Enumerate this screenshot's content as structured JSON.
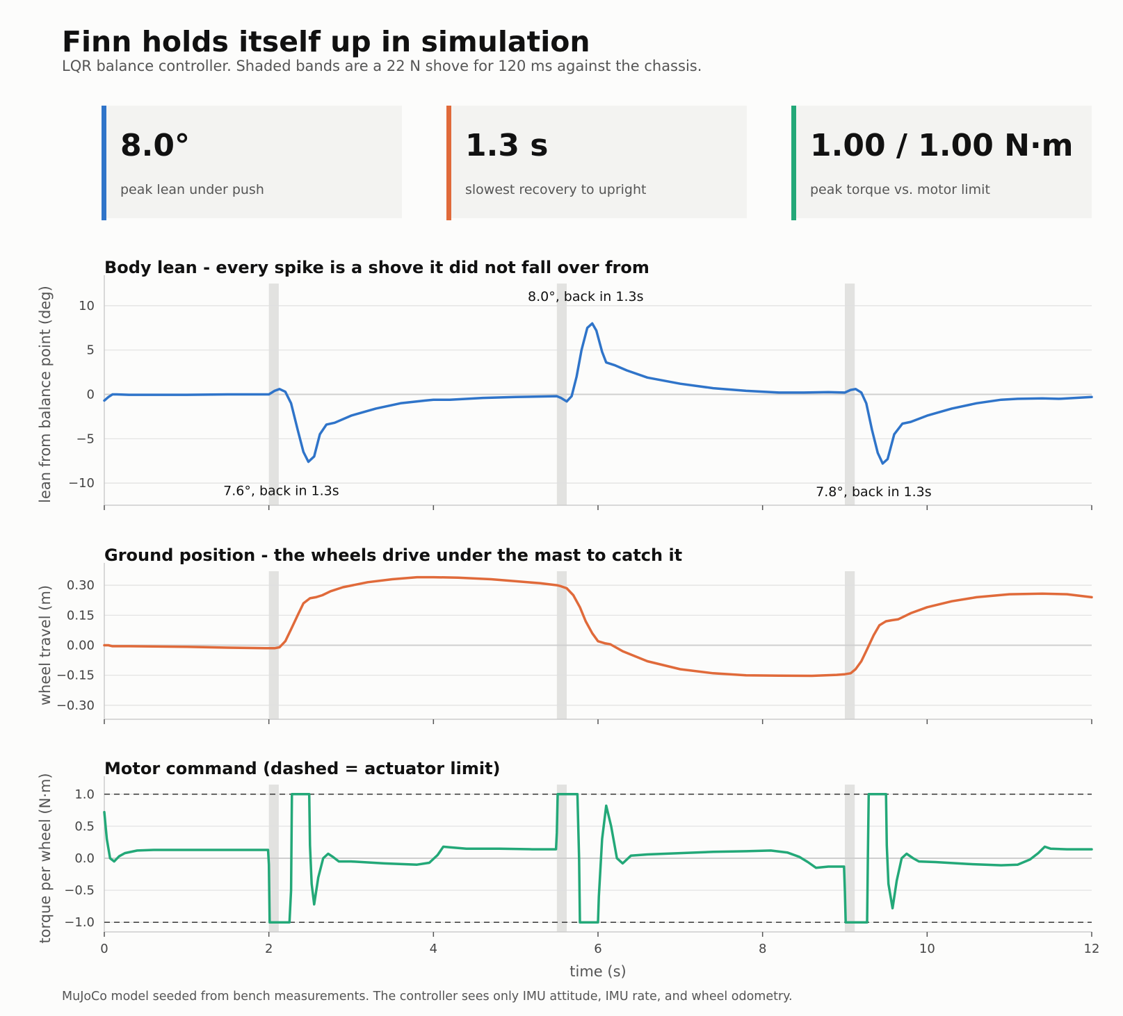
{
  "header": {
    "title": "Finn holds itself up in simulation",
    "subtitle": "LQR balance controller. Shaded bands are a 22 N shove for 120 ms against the chassis."
  },
  "kpis": [
    {
      "value": "8.0°",
      "label": "peak lean under push",
      "color": "#2f74c9"
    },
    {
      "value": "1.3 s",
      "label": "slowest recovery to upright",
      "color": "#e06a3a"
    },
    {
      "value": "1.00 / 1.00 N·m",
      "label": "peak torque vs. motor limit",
      "color": "#23a878"
    }
  ],
  "footer": "MuJoCo model seeded from bench measurements. The controller sees only IMU attitude, IMU rate, and wheel odometry.",
  "chart_data": [
    {
      "type": "line",
      "title": "Body lean - every spike is a shove it did not fall over from",
      "xlabel": "",
      "ylabel": "lean from balance point (deg)",
      "xlim": [
        0,
        12
      ],
      "ylim": [
        -12.5,
        12.5
      ],
      "yticks": [
        -10,
        -5,
        0,
        5,
        10
      ],
      "ytick_labels": [
        "−10",
        "−5",
        "0",
        "5",
        "10"
      ],
      "xticks": [
        0,
        2,
        4,
        6,
        8,
        10,
        12
      ],
      "xtick_labels": [],
      "color": "#2f74c9",
      "push_bands": [
        [
          2.0,
          2.12
        ],
        [
          5.5,
          5.62
        ],
        [
          9.0,
          9.12
        ]
      ],
      "series": [
        {
          "x": [
            0,
            0.05,
            0.1,
            0.15,
            0.3,
            1.0,
            1.5,
            2.0,
            2.07,
            2.13,
            2.2,
            2.27,
            2.35,
            2.42,
            2.48,
            2.55,
            2.62,
            2.7,
            2.8,
            3.0,
            3.3,
            3.6,
            3.9,
            4.0,
            4.2,
            4.6,
            5.0,
            5.5,
            5.55,
            5.62,
            5.68,
            5.74,
            5.8,
            5.87,
            5.93,
            5.98,
            6.05,
            6.1,
            6.2,
            6.35,
            6.6,
            7.0,
            7.4,
            7.8,
            8.2,
            8.5,
            8.8,
            9.0,
            9.07,
            9.13,
            9.2,
            9.26,
            9.33,
            9.4,
            9.46,
            9.52,
            9.6,
            9.7,
            9.8,
            10.0,
            10.3,
            10.6,
            10.9,
            11.1,
            11.4,
            11.6,
            12.0
          ],
          "y": [
            -0.7,
            -0.3,
            0,
            0,
            -0.05,
            -0.05,
            0,
            0,
            0.4,
            0.6,
            0.3,
            -1.0,
            -4.0,
            -6.5,
            -7.6,
            -7.0,
            -4.5,
            -3.4,
            -3.2,
            -2.4,
            -1.6,
            -1.0,
            -0.7,
            -0.6,
            -0.6,
            -0.4,
            -0.3,
            -0.2,
            -0.4,
            -0.8,
            -0.2,
            2.0,
            5.0,
            7.5,
            8.0,
            7.2,
            4.8,
            3.6,
            3.3,
            2.7,
            1.9,
            1.2,
            0.7,
            0.4,
            0.2,
            0.2,
            0.25,
            0.2,
            0.5,
            0.6,
            0.2,
            -1.0,
            -4.0,
            -6.6,
            -7.8,
            -7.3,
            -4.5,
            -3.3,
            -3.1,
            -2.4,
            -1.6,
            -1.0,
            -0.6,
            -0.5,
            -0.45,
            -0.5,
            -0.3
          ]
        }
      ],
      "annotations": [
        {
          "x": 2.15,
          "y": -10.9,
          "text": "7.6°, back in 1.3s"
        },
        {
          "x": 5.85,
          "y": 11.0,
          "text": "8.0°, back in 1.3s"
        },
        {
          "x": 9.35,
          "y": -11.0,
          "text": "7.8°, back in 1.3s"
        }
      ]
    },
    {
      "type": "line",
      "title": "Ground position - the wheels drive under the mast to catch it",
      "xlabel": "",
      "ylabel": "wheel travel (m)",
      "xlim": [
        0,
        12
      ],
      "ylim": [
        -0.37,
        0.37
      ],
      "yticks": [
        -0.3,
        -0.15,
        0.0,
        0.15,
        0.3
      ],
      "ytick_labels": [
        "−0.30",
        "−0.15",
        "0.00",
        "0.15",
        "0.30"
      ],
      "xticks": [
        0,
        2,
        4,
        6,
        8,
        10,
        12
      ],
      "xtick_labels": [],
      "color": "#e06a3a",
      "push_bands": [
        [
          2.0,
          2.12
        ],
        [
          5.5,
          5.62
        ],
        [
          9.0,
          9.12
        ]
      ],
      "series": [
        {
          "x": [
            0,
            0.05,
            0.1,
            0.3,
            1.0,
            1.5,
            2.0,
            2.07,
            2.13,
            2.2,
            2.27,
            2.35,
            2.42,
            2.5,
            2.57,
            2.65,
            2.75,
            2.9,
            3.2,
            3.5,
            3.8,
            4.0,
            4.3,
            4.7,
            5.0,
            5.3,
            5.5,
            5.55,
            5.62,
            5.7,
            5.78,
            5.85,
            5.93,
            6.0,
            6.08,
            6.15,
            6.3,
            6.6,
            7.0,
            7.4,
            7.8,
            8.2,
            8.6,
            8.9,
            9.0,
            9.07,
            9.13,
            9.2,
            9.27,
            9.35,
            9.42,
            9.5,
            9.57,
            9.65,
            9.8,
            10.0,
            10.3,
            10.6,
            11.0,
            11.4,
            11.7,
            12.0
          ],
          "y": [
            0,
            0,
            -0.005,
            -0.005,
            -0.008,
            -0.012,
            -0.015,
            -0.015,
            -0.01,
            0.02,
            0.08,
            0.15,
            0.21,
            0.235,
            0.24,
            0.25,
            0.27,
            0.29,
            0.315,
            0.33,
            0.34,
            0.34,
            0.338,
            0.33,
            0.32,
            0.31,
            0.3,
            0.295,
            0.285,
            0.25,
            0.19,
            0.12,
            0.06,
            0.02,
            0.01,
            0.005,
            -0.03,
            -0.08,
            -0.12,
            -0.14,
            -0.15,
            -0.152,
            -0.153,
            -0.148,
            -0.145,
            -0.14,
            -0.12,
            -0.08,
            -0.02,
            0.05,
            0.1,
            0.12,
            0.125,
            0.13,
            0.16,
            0.19,
            0.22,
            0.24,
            0.255,
            0.258,
            0.255,
            0.24
          ]
        }
      ]
    },
    {
      "type": "line",
      "title": "Motor command (dashed = actuator limit)",
      "xlabel": "time (s)",
      "ylabel": "torque per wheel (N·m)",
      "xlim": [
        0,
        12
      ],
      "ylim": [
        -1.15,
        1.15
      ],
      "yticks": [
        -1.0,
        -0.5,
        0.0,
        0.5,
        1.0
      ],
      "ytick_labels": [
        "−1.0",
        "−0.5",
        "0.0",
        "0.5",
        "1.0"
      ],
      "xticks": [
        0,
        2,
        4,
        6,
        8,
        10,
        12
      ],
      "xtick_labels": [
        "0",
        "2",
        "4",
        "6",
        "8",
        "10",
        "12"
      ],
      "limits": [
        1.0,
        -1.0
      ],
      "color": "#23a878",
      "push_bands": [
        [
          2.0,
          2.12
        ],
        [
          5.5,
          5.62
        ],
        [
          9.0,
          9.12
        ]
      ],
      "series": [
        {
          "x": [
            0,
            0.03,
            0.07,
            0.12,
            0.18,
            0.25,
            0.4,
            0.6,
            1.0,
            1.5,
            1.99,
            2.0,
            2.01,
            2.25,
            2.27,
            2.28,
            2.49,
            2.5,
            2.52,
            2.55,
            2.6,
            2.66,
            2.72,
            2.78,
            2.85,
            3.0,
            3.4,
            3.8,
            3.95,
            4.05,
            4.12,
            4.2,
            4.4,
            4.8,
            5.2,
            5.49,
            5.5,
            5.51,
            5.75,
            5.77,
            5.78,
            6.0,
            6.01,
            6.05,
            6.1,
            6.16,
            6.23,
            6.3,
            6.4,
            6.6,
            7.0,
            7.4,
            7.8,
            8.1,
            8.3,
            8.45,
            8.55,
            8.65,
            8.8,
            8.99,
            9.0,
            9.01,
            9.27,
            9.28,
            9.29,
            9.5,
            9.51,
            9.53,
            9.58,
            9.63,
            9.69,
            9.75,
            9.83,
            9.9,
            10.1,
            10.5,
            10.9,
            11.1,
            11.25,
            11.35,
            11.43,
            11.5,
            11.7,
            12.0
          ],
          "y": [
            0.72,
            0.3,
            0.0,
            -0.05,
            0.03,
            0.08,
            0.12,
            0.13,
            0.13,
            0.13,
            0.13,
            -0.1,
            -1.0,
            -1.0,
            -0.5,
            1.0,
            1.0,
            0.2,
            -0.4,
            -0.72,
            -0.3,
            0.0,
            0.07,
            0.02,
            -0.05,
            -0.05,
            -0.08,
            -0.1,
            -0.07,
            0.05,
            0.18,
            0.17,
            0.15,
            0.15,
            0.14,
            0.14,
            0.4,
            1.0,
            1.0,
            0.0,
            -1.0,
            -1.0,
            -0.6,
            0.3,
            0.82,
            0.5,
            0.0,
            -0.08,
            0.04,
            0.06,
            0.08,
            0.1,
            0.11,
            0.12,
            0.09,
            0.02,
            -0.06,
            -0.15,
            -0.13,
            -0.13,
            -0.5,
            -1.0,
            -1.0,
            0.0,
            1.0,
            1.0,
            0.2,
            -0.4,
            -0.78,
            -0.35,
            0.0,
            0.07,
            0.0,
            -0.05,
            -0.06,
            -0.09,
            -0.11,
            -0.1,
            -0.02,
            0.08,
            0.18,
            0.15,
            0.14,
            0.14
          ]
        }
      ]
    }
  ]
}
